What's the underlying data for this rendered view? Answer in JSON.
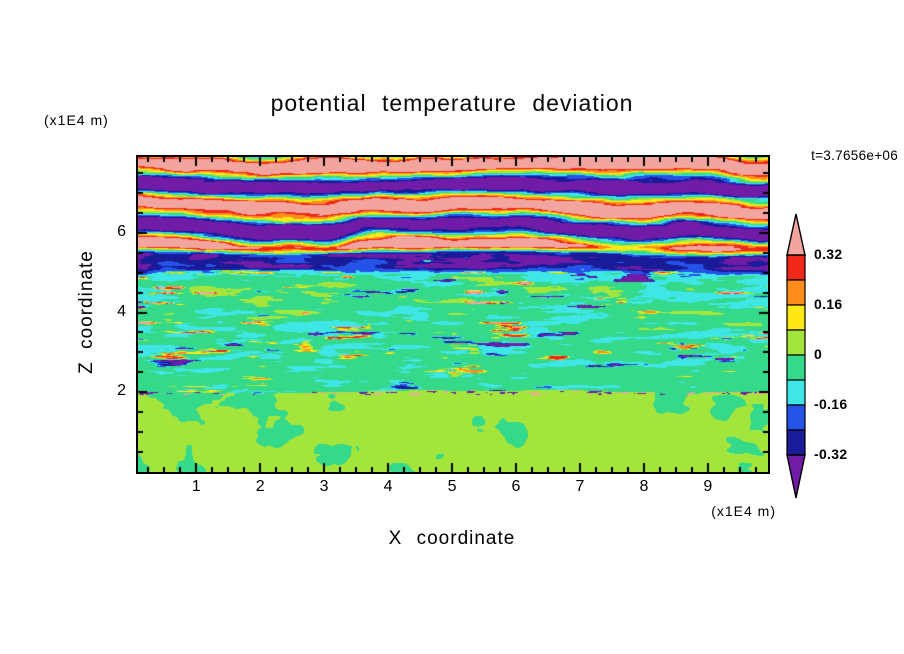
{
  "title": "potential temperature deviation",
  "timestamp": "t=3.7656e+06",
  "axes": {
    "x_label": "X coordinate",
    "x_unit": "(x1E4 m)",
    "z_label": "Z coordinate",
    "z_unit": "(x1E4 m)",
    "x_tick_labels": [
      "1",
      "2",
      "3",
      "4",
      "5",
      "6",
      "7",
      "8",
      "9"
    ],
    "z_tick_labels": [
      "2",
      "4",
      "6"
    ],
    "x_minor_step": 0.25,
    "z_minor_step": 0.5
  },
  "chart_data": {
    "type": "heatmap",
    "title": "potential temperature deviation",
    "xlabel": "X coordinate",
    "x_unit": "(x1E4 m)",
    "ylabel": "Z coordinate",
    "y_unit": "(x1E4 m)",
    "time_label": "t=3.7656e+06",
    "x_range": [
      0.09,
      9.94
    ],
    "z_range": [
      0.0,
      7.9
    ],
    "x_tick_values": [
      1,
      2,
      3,
      4,
      5,
      6,
      7,
      8,
      9
    ],
    "z_tick_values": [
      2,
      4,
      6
    ],
    "grid": false,
    "legend_position": "right-colorbar",
    "colorbar": {
      "orientation": "vertical",
      "tick_labels": [
        "0.32",
        "0.16",
        "0",
        "-0.16",
        "-0.32"
      ],
      "levels": [
        -0.32,
        -0.24,
        -0.16,
        -0.08,
        0,
        0.08,
        0.16,
        0.24,
        0.32
      ],
      "colors_low_to_high": [
        "#701CA6",
        "#191B99",
        "#2553E8",
        "#3FE6E6",
        "#35D98A",
        "#A4E53C",
        "#FFE816",
        "#FF8C1C",
        "#F0281A",
        "#F2A49E"
      ],
      "below_min_arrow_color": "#701CA6",
      "above_max_arrow_color": "#F2A49E"
    },
    "texture": {
      "seed": 7,
      "wave": {
        "z_min": 5.55,
        "amp": 0.5,
        "period": 1.08,
        "phase": 0.75
      },
      "dark": {
        "z_min": 5.0,
        "mean": -0.3
      },
      "lower": {
        "z_min": 2.02,
        "mean": -0.06
      },
      "bottom": {
        "mean": 0.015
      }
    },
    "field_summary": [
      "z 5.6-7.9: stratified wave region with alternating salmon (>0.32) and dark purple (<-0.32) undulating horizontal layers, thin red/orange and navy fringes, occasional green-cyan patches",
      "z 5.0-5.6: thick dark navy band (about -0.3) pierced by red and orange streaks",
      "z 2.0-5.0: turbulent shear zone, green/cyan background (about -0.06) threaded with thin yellow, orange and red positive streaks and navy negative streaks; activity increases with height",
      "z near 2.0: sharp thin interface line speckled with red, yellow, navy and purple dots",
      "z 0-2.0: convective layer, emerald green background near 0 with broad pale yellow-green plumes (0 to +0.08)"
    ]
  }
}
